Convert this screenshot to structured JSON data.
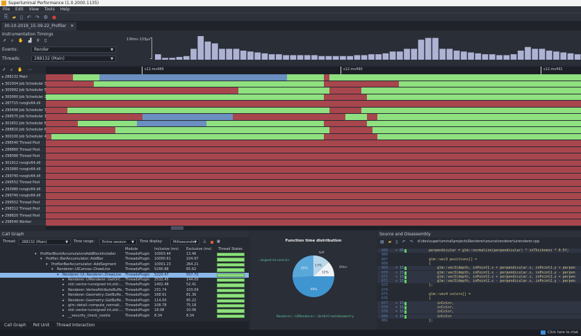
{
  "title": "Superluminal Performance (1.0.2000.1135)",
  "menu": [
    "File",
    "Edit",
    "View",
    "Tools",
    "Help"
  ],
  "toolbar_icons": [
    "new-icon",
    "open-icon",
    "copy-icon",
    "undo-icon",
    "redo-icon",
    "settings-icon",
    "record-icon"
  ],
  "tab": {
    "label": "30-10-2019_15-39-22_Profiler",
    "close": "✕"
  },
  "instrumentation": {
    "title": "Instrumentation Timings",
    "events_label": "Events:",
    "events_value": "Render",
    "threads_label": "Threads:",
    "threads_value": "288132 (Main)",
    "scale_label": "136ms 133µs"
  },
  "histogram": [
    6,
    2,
    2,
    3,
    4,
    12,
    26,
    20,
    18,
    12,
    12,
    12,
    10,
    9,
    8,
    7,
    6,
    6,
    5,
    5,
    5,
    5,
    5,
    4,
    4,
    4,
    4,
    4,
    5,
    5,
    6,
    6,
    7,
    9,
    9,
    12,
    12,
    22,
    24,
    24,
    12,
    12,
    10,
    9,
    8,
    7,
    6,
    6,
    5,
    5,
    6,
    10,
    14,
    12,
    12,
    10,
    9,
    8,
    7,
    6
  ],
  "ruler_labels": [
    "s12.ms489",
    "s12.ms490",
    "s12.ms491"
  ],
  "threads": [
    "288132 Main",
    "302004 Job Scheduler 3",
    "300992 Job Scheduler 5",
    "300060 Job Scheduler 2",
    "287715 nvoglv64.dll",
    "295408 Job Scheduler 7",
    "299575 Job Scheduler 1",
    "301652 Job Scheduler 8",
    "288820 Job Scheduler 6",
    "300100 Job Scheduler 4",
    "298540 Thread Pool",
    "288860 Thread Pool",
    "298086 Thread Pool",
    "301912 nvoglv64.dll",
    "293980 nvoglv64.dll",
    "299740 nvoglv64.dll",
    "299552 Thread Pool",
    "293980 nvoglv64.dll",
    "299740 nvoglv64.dll",
    "299552 Thread Pool",
    "298312 Thread Pool",
    "298820 Thread Pool",
    "298540 Worker"
  ],
  "state_colors": {
    "waiting": "#a8464e",
    "running": "#8fe07f",
    "io": "#6a8fc0"
  },
  "call_graph": {
    "title": "Call Graph",
    "thread_label": "Thread:",
    "thread_value": "288132 (Main)",
    "range_label": "Time range:",
    "range_value": "Entire session",
    "display_label": "Time display:",
    "display_value": "Milliseconds",
    "columns": [
      "Module",
      "Inclusive (ms)",
      "Exclusive (ms)",
      "Thread States"
    ],
    "rows": [
      {
        "name": "ProfilerBlockAccumulatorsAddBlockInstaller",
        "module": "ThreadsPlugin",
        "incl": "10003.44",
        "excl": "13.46",
        "depth": 0
      },
      {
        "name": "Profiler::BarAccumulator::AddBar",
        "module": "ThreadsPlugin",
        "incl": "10000.61",
        "excl": "104.97",
        "depth": 1
      },
      {
        "name": "ProfilerBarAccumulator::AddSegment",
        "module": "ThreadsPlugin",
        "incl": "10001.23",
        "excl": "264.21",
        "depth": 2
      },
      {
        "name": "Renderer::UICanvas::DrawLine",
        "module": "ThreadsPlugin",
        "incl": "5290.88",
        "excl": "65.62",
        "depth": 3
      },
      {
        "name": "Renderer::UI::Renderer::DrawLine",
        "module": "ThreadsPlugin",
        "incl": "5220.47",
        "excl": "557.70",
        "depth": 4,
        "selected": true
      },
      {
        "name": "Renderer::UIRenderer::GetOrC...",
        "module": "ThreadsPlugin",
        "incl": "2532.45",
        "excl": "144.00",
        "depth": 5
      },
      {
        "name": "std::vector<unsigned int,std::...",
        "module": "ThreadsPlugin",
        "incl": "1402.48",
        "excl": "52.41",
        "depth": 5
      },
      {
        "name": "Renderer::VertexAttributeBuffe...",
        "module": "ThreadsPlugin",
        "incl": "231.74",
        "excl": "103.09",
        "depth": 5
      },
      {
        "name": "Renderer::Geometry::GetBuffe...",
        "module": "ThreadsPlugin",
        "incl": "168.91",
        "excl": "81.36",
        "depth": 5
      },
      {
        "name": "Renderer::Geometry::GetBuffe...",
        "module": "ThreadsPlugin",
        "incl": "114.00",
        "excl": "95.22",
        "depth": 5
      },
      {
        "name": "glm::detail::compute_normali...",
        "module": "ThreadsPlugin",
        "incl": "108.78",
        "excl": "75.18",
        "depth": 5
      },
      {
        "name": "std::vector<unsigned int,std::...",
        "module": "ThreadsPlugin",
        "incl": "18.08",
        "excl": "10.06",
        "depth": 5
      },
      {
        "name": "__security_check_cookie",
        "module": "ThreadsPlugin",
        "incl": "8.34",
        "excl": "8.34",
        "depth": 5
      }
    ]
  },
  "bottom_tabs": [
    "Call Graph",
    "Pet Unit",
    "Thread Interaction"
  ],
  "chart_data": {
    "type": "pie",
    "title": "Function time distribution",
    "slices": [
      {
        "label": "Self",
        "value": 13,
        "color": "#b9d7ea"
      },
      {
        "label": "Other",
        "value": 12,
        "color": "#eef3f8"
      },
      {
        "label": "",
        "value": 49,
        "color": "#3f95cf"
      },
      {
        "label": "...esigned int const &>",
        "value": 26,
        "color": "#5aa8da"
      }
    ],
    "percent_labels": [
      "13%",
      "12%",
      "49%",
      "26%"
    ],
    "footer": "Renderer::UIRenderer::GetOrCreateGeometry"
  },
  "source": {
    "title": "Source and Disassembly",
    "path": "d:\\dev\\superluminal\\projects\\Renderer\\source\\renderer\\uirenderer.cpp",
    "lines": [
      {
        "n": "665",
        "hit": "< 65",
        "code": "perpendicular = glm::normalize(perpendicular) * inThickness * 0.5f;"
      },
      {
        "n": "666",
        "hit": "",
        "code": ""
      },
      {
        "n": "667",
        "hit": "",
        "code": "glm::vec3 positions[] ="
      },
      {
        "n": "668",
        "hit": "",
        "code": "{"
      },
      {
        "n": "669",
        "hit": "< 15",
        "code": "    glm::vec3(depth, inPoint1.x + perpendicular.x, inPoint1.y + perpen"
      },
      {
        "n": "670",
        "hit": "< 15",
        "code": "    glm::vec3(depth, inPoint1.x - perpendicular.x, inPoint1.y - perpen"
      },
      {
        "n": "671",
        "hit": "< 15",
        "code": "    glm::vec3(depth, inPoint2.x + perpendicular.x, inPoint2.y + perpen"
      },
      {
        "n": "672",
        "hit": "< 15",
        "code": "    glm::vec3(depth, inPoint2.x - perpendicular.x, inPoint2.y - perpen"
      },
      {
        "n": "673",
        "hit": "",
        "code": "};"
      },
      {
        "n": "674",
        "hit": "",
        "code": ""
      },
      {
        "n": "675",
        "hit": "",
        "code": "glm::vec4 colors[] ="
      },
      {
        "n": "676",
        "hit": "",
        "code": "{"
      },
      {
        "n": "677",
        "hit": "< 15",
        "code": "    inColor,"
      },
      {
        "n": "678",
        "hit": "< 15",
        "code": "    inColor,"
      },
      {
        "n": "679",
        "hit": "< 15",
        "code": "    inColor,"
      },
      {
        "n": "680",
        "hit": "< 15",
        "code": "    inColor"
      },
      {
        "n": "681",
        "hit": "",
        "code": "};"
      }
    ]
  },
  "status": {
    "chat": "Click here to chat"
  }
}
